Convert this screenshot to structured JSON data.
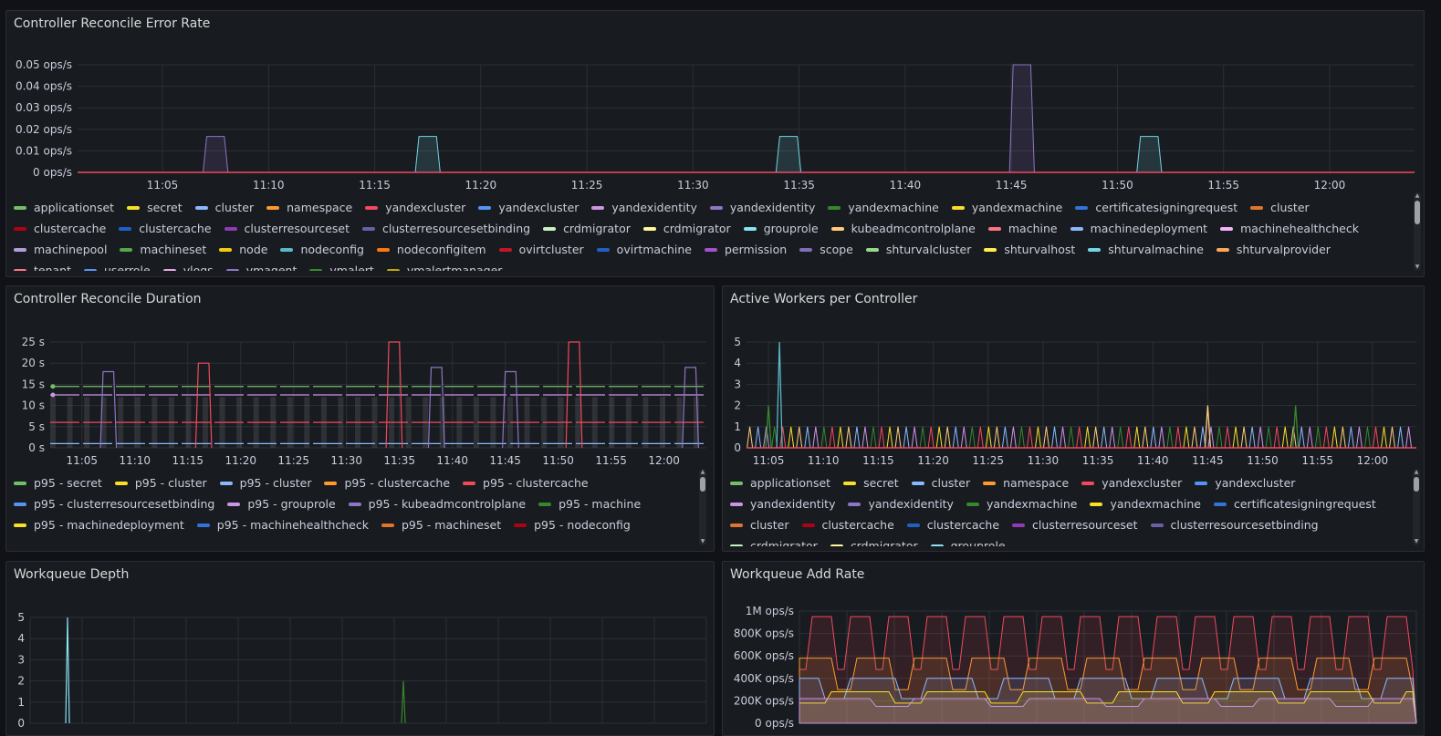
{
  "panels": {
    "p1": {
      "title": "Controller Reconcile Error Rate",
      "legend": [
        {
          "label": "applicationset",
          "color": "#73bf69"
        },
        {
          "label": "secret",
          "color": "#fade2a"
        },
        {
          "label": "cluster",
          "color": "#8ab8ff"
        },
        {
          "label": "namespace",
          "color": "#ff9830"
        },
        {
          "label": "yandexcluster",
          "color": "#f2495c"
        },
        {
          "label": "yandexcluster",
          "color": "#5794f2"
        },
        {
          "label": "yandexidentity",
          "color": "#ca95e5"
        },
        {
          "label": "yandexidentity",
          "color": "#8e75c6"
        },
        {
          "label": "yandexmachine",
          "color": "#37872d"
        },
        {
          "label": "yandexmachine",
          "color": "#fade2a"
        },
        {
          "label": "certificatesigningrequest",
          "color": "#3274d9"
        },
        {
          "label": "cluster",
          "color": "#e0752d"
        },
        {
          "label": "clustercache",
          "color": "#ad0317"
        },
        {
          "label": "clustercache",
          "color": "#1f60c4"
        },
        {
          "label": "clusterresourceset",
          "color": "#8f3bb8"
        },
        {
          "label": "clusterresourcesetbinding",
          "color": "#6c5fa7"
        },
        {
          "label": "crdmigrator",
          "color": "#c8f2c2"
        },
        {
          "label": "crdmigrator",
          "color": "#fff899"
        },
        {
          "label": "grouprole",
          "color": "#8ae3f2"
        },
        {
          "label": "kubeadmcontrolplane",
          "color": "#ffcb7d"
        },
        {
          "label": "machine",
          "color": "#ff7383"
        },
        {
          "label": "machinedeployment",
          "color": "#8ab8ff"
        },
        {
          "label": "machinehealthcheck",
          "color": "#f4b3ff"
        },
        {
          "label": "machinepool",
          "color": "#b39ddb"
        },
        {
          "label": "machineset",
          "color": "#56a64b"
        },
        {
          "label": "node",
          "color": "#f2cc0c"
        },
        {
          "label": "nodeconfig",
          "color": "#5ab8c8"
        },
        {
          "label": "nodeconfigitem",
          "color": "#ff780a"
        },
        {
          "label": "ovirtcluster",
          "color": "#c4162a"
        },
        {
          "label": "ovirtmachine",
          "color": "#1f60c4"
        },
        {
          "label": "permission",
          "color": "#a352cc"
        },
        {
          "label": "scope",
          "color": "#806eb7"
        },
        {
          "label": "shturvalcluster",
          "color": "#96d98d"
        },
        {
          "label": "shturvalhost",
          "color": "#ffee52"
        },
        {
          "label": "shturvalmachine",
          "color": "#73d6e6"
        },
        {
          "label": "shturvalprovider",
          "color": "#ffa657"
        },
        {
          "label": "tenant",
          "color": "#ff7383"
        },
        {
          "label": "userrole",
          "color": "#5794f2"
        },
        {
          "label": "vlogs",
          "color": "#e5a8e2"
        },
        {
          "label": "vmagent",
          "color": "#8e75c6"
        },
        {
          "label": "vmalert",
          "color": "#37872d"
        },
        {
          "label": "vmalertmanager",
          "color": "#c0a60b"
        }
      ],
      "chart_data": {
        "type": "area",
        "ylim": [
          0,
          0.05
        ],
        "y_ticks": [
          "0 ops/s",
          "0.01 ops/s",
          "0.02 ops/s",
          "0.03 ops/s",
          "0.04 ops/s",
          "0.05 ops/s"
        ],
        "x_ticks": [
          "11:05",
          "11:10",
          "11:15",
          "11:20",
          "11:25",
          "11:30",
          "11:35",
          "11:40",
          "11:45",
          "11:50",
          "11:55",
          "12:00"
        ],
        "spikes": [
          {
            "from": "11:07",
            "to": "11:07",
            "value": 0.0167,
            "color": "#8e75c6"
          },
          {
            "from": "11:17",
            "to": "11:17",
            "value": 0.0167,
            "color": "#73d6e6"
          },
          {
            "from": "11:34",
            "to": "11:34",
            "value": 0.0167,
            "color": "#73d6e6"
          },
          {
            "from": "11:45",
            "to": "11:45",
            "value": 0.05,
            "color": "#8e75c6"
          },
          {
            "from": "11:51",
            "to": "11:51",
            "value": 0.0167,
            "color": "#73d6e6"
          }
        ]
      }
    },
    "p2": {
      "title": "Controller Reconcile Duration",
      "legend": [
        {
          "label": "p95 - secret",
          "color": "#73bf69"
        },
        {
          "label": "p95 - cluster",
          "color": "#fade2a"
        },
        {
          "label": "p95 - cluster",
          "color": "#8ab8ff"
        },
        {
          "label": "p95 - clustercache",
          "color": "#ff9830"
        },
        {
          "label": "p95 - clustercache",
          "color": "#f2495c"
        },
        {
          "label": "p95 - clusterresourcesetbinding",
          "color": "#5794f2"
        },
        {
          "label": "p95 - grouprole",
          "color": "#ca95e5"
        },
        {
          "label": "p95 - kubeadmcontrolplane",
          "color": "#8e75c6"
        },
        {
          "label": "p95 - machine",
          "color": "#37872d"
        },
        {
          "label": "p95 - machinedeployment",
          "color": "#fade2a"
        },
        {
          "label": "p95 - machinehealthcheck",
          "color": "#3274d9"
        },
        {
          "label": "p95 - machineset",
          "color": "#e0752d"
        },
        {
          "label": "p95 - nodeconfig",
          "color": "#ad0317"
        }
      ],
      "chart_data": {
        "type": "line",
        "ylim": [
          0,
          25
        ],
        "y_ticks": [
          "0 s",
          "5 s",
          "10 s",
          "15 s",
          "20 s",
          "25 s"
        ],
        "x_ticks": [
          "11:05",
          "11:10",
          "11:15",
          "11:20",
          "11:25",
          "11:30",
          "11:35",
          "11:40",
          "11:45",
          "11:50",
          "11:55",
          "12:00"
        ],
        "levels": [
          {
            "name": "p95 - secret",
            "value": 14.5,
            "color": "#73bf69"
          },
          {
            "name": "p95 - grouprole",
            "value": 12.5,
            "color": "#ca95e5"
          },
          {
            "name": "p95 - clustercache",
            "value": 6,
            "color": "#f2495c"
          },
          {
            "name": "p95 - cluster",
            "value": 1,
            "color": "#8ab8ff"
          }
        ],
        "spikes": [
          {
            "at": "11:07",
            "value": 18,
            "color": "#8e75c6"
          },
          {
            "at": "11:16",
            "value": 20,
            "color": "#f2495c"
          },
          {
            "at": "11:34",
            "value": 25,
            "color": "#f2495c"
          },
          {
            "at": "11:38",
            "value": 19,
            "color": "#8e75c6"
          },
          {
            "at": "11:45",
            "value": 18,
            "color": "#8e75c6"
          },
          {
            "at": "11:51",
            "value": 25,
            "color": "#f2495c"
          },
          {
            "at": "12:02",
            "value": 19,
            "color": "#8e75c6"
          }
        ]
      }
    },
    "p3": {
      "title": "Active Workers per Controller",
      "legend": [
        {
          "label": "applicationset",
          "color": "#73bf69"
        },
        {
          "label": "secret",
          "color": "#fade2a"
        },
        {
          "label": "cluster",
          "color": "#8ab8ff"
        },
        {
          "label": "namespace",
          "color": "#ff9830"
        },
        {
          "label": "yandexcluster",
          "color": "#f2495c"
        },
        {
          "label": "yandexcluster",
          "color": "#5794f2"
        },
        {
          "label": "yandexidentity",
          "color": "#ca95e5"
        },
        {
          "label": "yandexidentity",
          "color": "#8e75c6"
        },
        {
          "label": "yandexmachine",
          "color": "#37872d"
        },
        {
          "label": "yandexmachine",
          "color": "#fade2a"
        },
        {
          "label": "certificatesigningrequest",
          "color": "#3274d9"
        },
        {
          "label": "cluster",
          "color": "#e0752d"
        },
        {
          "label": "clustercache",
          "color": "#ad0317"
        },
        {
          "label": "clustercache",
          "color": "#1f60c4"
        },
        {
          "label": "clusterresourceset",
          "color": "#8f3bb8"
        },
        {
          "label": "clusterresourcesetbinding",
          "color": "#6c5fa7"
        },
        {
          "label": "crdmigrator",
          "color": "#c8f2c2"
        },
        {
          "label": "crdmigrator",
          "color": "#fff899"
        },
        {
          "label": "grouprole",
          "color": "#8ae3f2"
        }
      ],
      "chart_data": {
        "type": "line",
        "ylim": [
          0,
          5
        ],
        "y_ticks": [
          "0",
          "1",
          "2",
          "3",
          "4",
          "5"
        ],
        "x_ticks": [
          "11:05",
          "11:10",
          "11:15",
          "11:20",
          "11:25",
          "11:30",
          "11:35",
          "11:40",
          "11:45",
          "11:50",
          "11:55",
          "12:00"
        ],
        "spikes": [
          {
            "at": "11:06",
            "value": 5,
            "color": "#5ab8c8"
          },
          {
            "at": "11:05",
            "value": 2,
            "color": "#37872d"
          },
          {
            "at": "11:45",
            "value": 2,
            "color": "#ffcb7d"
          },
          {
            "at": "11:53",
            "value": 2,
            "color": "#37872d"
          }
        ]
      }
    },
    "p4": {
      "title": "Workqueue Depth",
      "chart_data": {
        "type": "line",
        "ylim": [
          0,
          5
        ],
        "y_ticks": [
          "0",
          "1",
          "2",
          "3",
          "4",
          "5"
        ],
        "spikes": [
          {
            "at": "11:06",
            "value": 5,
            "color": "#8ae3f2"
          },
          {
            "at": "11:36",
            "value": 2,
            "color": "#37872d"
          }
        ]
      }
    },
    "p5": {
      "title": "Workqueue Add Rate",
      "chart_data": {
        "type": "area",
        "ylim": [
          0,
          1000000
        ],
        "y_ticks": [
          "0 ops/s",
          "200K ops/s",
          "400K ops/s",
          "600K ops/s",
          "800K ops/s",
          "1M ops/s"
        ],
        "series": [
          {
            "color": "#f2495c",
            "high": 950000,
            "low": 480000
          },
          {
            "color": "#ff9830",
            "high": 580000,
            "low": 300000
          },
          {
            "color": "#8ab8ff",
            "high": 400000,
            "low": 220000
          },
          {
            "color": "#fade2a",
            "high": 280000,
            "low": 180000
          },
          {
            "color": "#ca95e5",
            "high": 220000,
            "low": 150000
          }
        ]
      }
    }
  }
}
